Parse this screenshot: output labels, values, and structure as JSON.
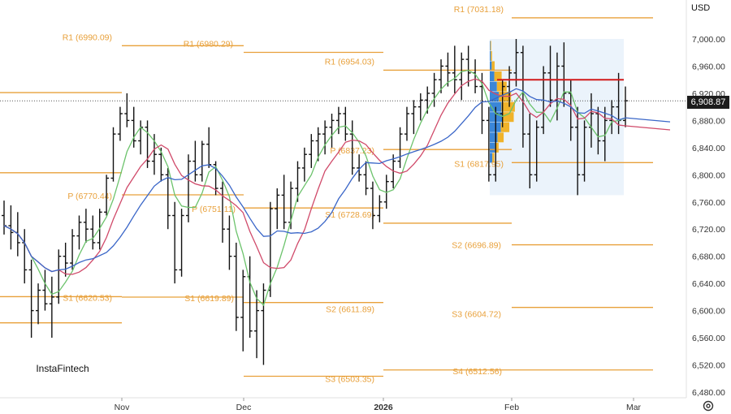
{
  "currency": "USD",
  "current_price_label": "6,908.87",
  "brand": "InstaFintech",
  "settings_icon": "gear-icon",
  "colors": {
    "level_line": "#e8a03a",
    "candles": "#111111",
    "ma_fast": "#6cc36c",
    "ma_mid": "#d04a6a",
    "ma_slow": "#3a66c8",
    "resistance_line": "#d11a1a",
    "volume_profile_main": "#3a86d8",
    "volume_profile_secondary": "#f0b32a"
  },
  "chart_data": {
    "type": "ohlc",
    "ylim": [
      6480,
      7020
    ],
    "y_ticks": [
      {
        "value": 7000,
        "label": "7,000.00"
      },
      {
        "value": 6960,
        "label": "6,960.00"
      },
      {
        "value": 6920,
        "label": "6,920.00"
      },
      {
        "value": 6880,
        "label": "6,880.00"
      },
      {
        "value": 6840,
        "label": "6,840.00"
      },
      {
        "value": 6800,
        "label": "6,800.00"
      },
      {
        "value": 6760,
        "label": "6,760.00"
      },
      {
        "value": 6720,
        "label": "6,720.00"
      },
      {
        "value": 6680,
        "label": "6,680.00"
      },
      {
        "value": 6640,
        "label": "6,640.00"
      },
      {
        "value": 6600,
        "label": "6,600.00"
      },
      {
        "value": 6560,
        "label": "6,560.00"
      },
      {
        "value": 6520,
        "label": "6,520.00"
      },
      {
        "value": 6480,
        "label": "6,480.00"
      }
    ],
    "x_ticks": [
      {
        "label": "Nov",
        "bold": false
      },
      {
        "label": "Dec",
        "bold": false
      },
      {
        "label": "2026",
        "bold": true
      },
      {
        "label": "Feb",
        "bold": false
      },
      {
        "label": "Mar",
        "bold": false
      }
    ],
    "pivot_levels": [
      {
        "label": "R1 (6990.09)",
        "value": 6990.09
      },
      {
        "label": "R1 (6980.29)",
        "value": 6980.29
      },
      {
        "label": "R1 (6954.03)",
        "value": 6954.03
      },
      {
        "label": "R1 (7031.18)",
        "value": 7031.18
      },
      {
        "label": "P (6770.44)",
        "value": 6770.44
      },
      {
        "label": "P (6751.11)",
        "value": 6751.11
      },
      {
        "label": "P (6837.23)",
        "value": 6837.23
      },
      {
        "label": "S1 (6817.95)",
        "value": 6817.95
      },
      {
        "label": "S1 (6620.53)",
        "value": 6620.53
      },
      {
        "label": "S1 (6619.89)",
        "value": 6619.89
      },
      {
        "label": "S1 (6728.69)",
        "value": 6728.69
      },
      {
        "label": "S2 (6611.89)",
        "value": 6611.89
      },
      {
        "label": "S2 (6696.89)",
        "value": 6696.89
      },
      {
        "label": "S3 (6604.72)",
        "value": 6604.72
      },
      {
        "label": "S3 (6503.35)",
        "value": 6503.35
      },
      {
        "label": "S4 (6512.56)",
        "value": 6512.56
      }
    ],
    "unlabeled_levels": [
      6921,
      6803,
      6582
    ],
    "current_price": 6908.87,
    "resistance_level": 6940,
    "ohlc": [
      [
        6740,
        6762,
        6712,
        6725
      ],
      [
        6725,
        6755,
        6690,
        6715
      ],
      [
        6715,
        6745,
        6680,
        6700
      ],
      [
        6700,
        6720,
        6640,
        6660
      ],
      [
        6660,
        6675,
        6560,
        6600
      ],
      [
        6600,
        6640,
        6580,
        6630
      ],
      [
        6630,
        6660,
        6600,
        6610
      ],
      [
        6610,
        6650,
        6560,
        6620
      ],
      [
        6620,
        6690,
        6610,
        6680
      ],
      [
        6680,
        6700,
        6650,
        6670
      ],
      [
        6670,
        6720,
        6660,
        6710
      ],
      [
        6710,
        6740,
        6690,
        6730
      ],
      [
        6730,
        6750,
        6700,
        6720
      ],
      [
        6720,
        6740,
        6690,
        6700
      ],
      [
        6700,
        6750,
        6690,
        6745
      ],
      [
        6745,
        6800,
        6740,
        6795
      ],
      [
        6795,
        6870,
        6790,
        6860
      ],
      [
        6860,
        6900,
        6850,
        6890
      ],
      [
        6890,
        6920,
        6870,
        6880
      ],
      [
        6880,
        6900,
        6840,
        6850
      ],
      [
        6850,
        6880,
        6830,
        6870
      ],
      [
        6870,
        6880,
        6810,
        6820
      ],
      [
        6820,
        6860,
        6800,
        6830
      ],
      [
        6830,
        6840,
        6790,
        6800
      ],
      [
        6800,
        6810,
        6720,
        6740
      ],
      [
        6740,
        6760,
        6640,
        6660
      ],
      [
        6660,
        6750,
        6650,
        6740
      ],
      [
        6740,
        6830,
        6730,
        6820
      ],
      [
        6820,
        6850,
        6790,
        6800
      ],
      [
        6800,
        6850,
        6790,
        6845
      ],
      [
        6845,
        6870,
        6810,
        6815
      ],
      [
        6815,
        6820,
        6770,
        6780
      ],
      [
        6780,
        6790,
        6700,
        6720
      ],
      [
        6720,
        6740,
        6660,
        6680
      ],
      [
        6680,
        6700,
        6570,
        6590
      ],
      [
        6590,
        6660,
        6540,
        6650
      ],
      [
        6650,
        6680,
        6560,
        6570
      ],
      [
        6570,
        6630,
        6530,
        6600
      ],
      [
        6600,
        6640,
        6520,
        6630
      ],
      [
        6630,
        6760,
        6620,
        6750
      ],
      [
        6750,
        6780,
        6720,
        6770
      ],
      [
        6770,
        6800,
        6720,
        6730
      ],
      [
        6730,
        6790,
        6720,
        6780
      ],
      [
        6780,
        6820,
        6760,
        6810
      ],
      [
        6810,
        6840,
        6790,
        6830
      ],
      [
        6830,
        6860,
        6810,
        6850
      ],
      [
        6850,
        6870,
        6820,
        6860
      ],
      [
        6860,
        6880,
        6830,
        6870
      ],
      [
        6870,
        6890,
        6840,
        6880
      ],
      [
        6880,
        6900,
        6860,
        6890
      ],
      [
        6890,
        6900,
        6850,
        6860
      ],
      [
        6860,
        6880,
        6800,
        6810
      ],
      [
        6810,
        6830,
        6790,
        6800
      ],
      [
        6800,
        6820,
        6770,
        6780
      ],
      [
        6780,
        6790,
        6720,
        6740
      ],
      [
        6740,
        6770,
        6730,
        6760
      ],
      [
        6760,
        6800,
        6750,
        6790
      ],
      [
        6790,
        6830,
        6780,
        6820
      ],
      [
        6820,
        6870,
        6810,
        6860
      ],
      [
        6860,
        6900,
        6850,
        6890
      ],
      [
        6890,
        6910,
        6860,
        6900
      ],
      [
        6900,
        6920,
        6880,
        6910
      ],
      [
        6910,
        6930,
        6890,
        6920
      ],
      [
        6920,
        6950,
        6900,
        6940
      ],
      [
        6940,
        6970,
        6920,
        6960
      ],
      [
        6960,
        6980,
        6930,
        6950
      ],
      [
        6950,
        6990,
        6920,
        6940
      ],
      [
        6940,
        6980,
        6910,
        6970
      ],
      [
        6970,
        6990,
        6930,
        6950
      ],
      [
        6950,
        6970,
        6920,
        6930
      ],
      [
        6930,
        6950,
        6860,
        6880
      ],
      [
        6880,
        6900,
        6790,
        6800
      ],
      [
        6800,
        6900,
        6790,
        6890
      ],
      [
        6890,
        6940,
        6870,
        6930
      ],
      [
        6930,
        6960,
        6900,
        6950
      ],
      [
        6950,
        7000,
        6930,
        6980
      ],
      [
        6980,
        6990,
        6840,
        6860
      ],
      [
        6860,
        6890,
        6780,
        6800
      ],
      [
        6800,
        6880,
        6790,
        6870
      ],
      [
        6870,
        6960,
        6860,
        6950
      ],
      [
        6950,
        6990,
        6900,
        6910
      ],
      [
        6910,
        6980,
        6880,
        6960
      ],
      [
        6960,
        6995,
        6900,
        6920
      ],
      [
        6920,
        6940,
        6850,
        6870
      ],
      [
        6870,
        6900,
        6770,
        6800
      ],
      [
        6800,
        6880,
        6790,
        6870
      ],
      [
        6870,
        6920,
        6840,
        6890
      ],
      [
        6890,
        6900,
        6830,
        6850
      ],
      [
        6850,
        6900,
        6820,
        6880
      ],
      [
        6880,
        6910,
        6860,
        6900
      ],
      [
        6900,
        6950,
        6860,
        6880
      ],
      [
        6880,
        6930,
        6870,
        6909
      ]
    ],
    "volume_profile": [
      {
        "price": 6990,
        "blue": 0.05,
        "gold": 0.03
      },
      {
        "price": 6975,
        "blue": 0.08,
        "gold": 0.05
      },
      {
        "price": 6960,
        "blue": 0.15,
        "gold": 0.12
      },
      {
        "price": 6945,
        "blue": 0.35,
        "gold": 0.3
      },
      {
        "price": 6930,
        "blue": 0.55,
        "gold": 0.4
      },
      {
        "price": 6915,
        "blue": 0.7,
        "gold": 0.5
      },
      {
        "price": 6900,
        "blue": 0.9,
        "gold": 0.55
      },
      {
        "price": 6885,
        "blue": 1.0,
        "gold": 0.45
      },
      {
        "price": 6870,
        "blue": 0.85,
        "gold": 0.35
      },
      {
        "price": 6855,
        "blue": 0.6,
        "gold": 0.25
      },
      {
        "price": 6840,
        "blue": 0.4,
        "gold": 0.15
      },
      {
        "price": 6825,
        "blue": 0.2,
        "gold": 0.08
      }
    ]
  }
}
